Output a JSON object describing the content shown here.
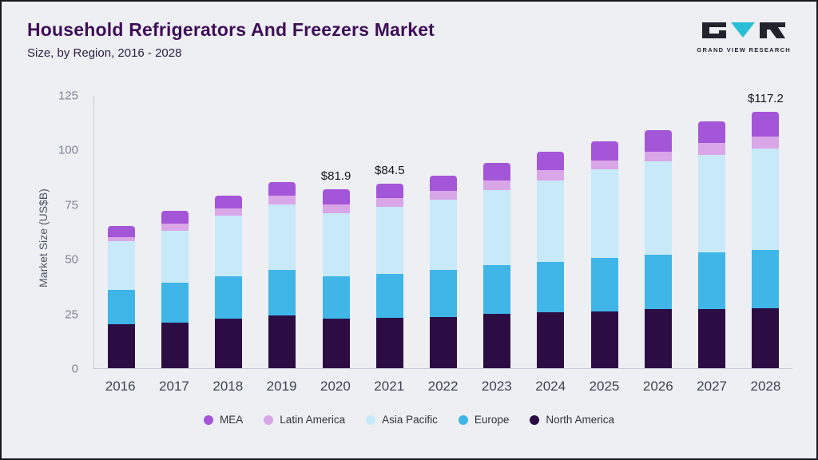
{
  "header": {
    "title": "Household Refrigerators And Freezers Market",
    "subtitle": "Size, by Region, 2016 - 2028",
    "logo_text": "GRAND VIEW RESEARCH"
  },
  "chart_data": {
    "type": "bar",
    "stacked": true,
    "title": "Household Refrigerators And Freezers Market Size, by Region, 2016 - 2028",
    "xlabel": "",
    "ylabel": "Market Size (US$B)",
    "ylim": [
      0,
      125
    ],
    "yticks": [
      0,
      25,
      50,
      75,
      100,
      125
    ],
    "grid": false,
    "legend_position": "bottom",
    "categories": [
      "2016",
      "2017",
      "2018",
      "2019",
      "2020",
      "2021",
      "2022",
      "2023",
      "2024",
      "2025",
      "2026",
      "2027",
      "2028"
    ],
    "series": [
      {
        "name": "North America",
        "color": "#2b0d44",
        "values": [
          20,
          21,
          22.5,
          24,
          22.5,
          23,
          23.5,
          25,
          25.5,
          26,
          27,
          27,
          27.5
        ]
      },
      {
        "name": "Europe",
        "color": "#3fb5e8",
        "values": [
          16,
          18,
          19.5,
          21,
          19.5,
          20,
          21.5,
          22,
          23,
          24.5,
          25,
          26,
          26.5
        ]
      },
      {
        "name": "Asia Pacific",
        "color": "#c8e9f8",
        "values": [
          22,
          24,
          28,
          30,
          29,
          31,
          32,
          34.5,
          37.5,
          40.5,
          42.5,
          44.5,
          46.5
        ]
      },
      {
        "name": "Latin America",
        "color": "#d9a6e8",
        "values": [
          2,
          3,
          3,
          4,
          4,
          4,
          4,
          4.5,
          4.5,
          4,
          4.5,
          5.5,
          5.5
        ]
      },
      {
        "name": "MEA",
        "color": "#a456d8",
        "values": [
          5,
          6,
          6,
          6,
          6.9,
          6.5,
          7,
          8,
          8.5,
          9,
          10,
          10,
          11.2
        ]
      }
    ],
    "totals": [
      65,
      72,
      79,
      85,
      81.9,
      84.5,
      88,
      94,
      99,
      104,
      109,
      113,
      117.2
    ],
    "annotations": [
      {
        "category": "2020",
        "text": "$81.9"
      },
      {
        "category": "2021",
        "text": "$84.5"
      },
      {
        "category": "2028",
        "text": "$117.2"
      }
    ],
    "legend": [
      "MEA",
      "Latin America",
      "Asia Pacific",
      "Europe",
      "North America"
    ]
  }
}
